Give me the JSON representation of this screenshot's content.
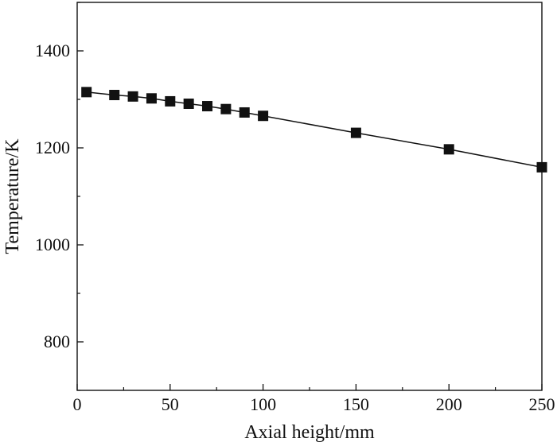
{
  "chart_data": {
    "type": "line",
    "title": "",
    "xlabel": "Axial height/mm",
    "ylabel": "Temperature/K",
    "xlim": [
      0,
      250
    ],
    "ylim": [
      700,
      1500
    ],
    "x_major_ticks": [
      0,
      50,
      100,
      150,
      200,
      250
    ],
    "x_minor_ticks": [
      25,
      75,
      125,
      175,
      225
    ],
    "y_major_ticks": [
      800,
      1000,
      1200,
      1400
    ],
    "y_minor_ticks": [
      700,
      900,
      1100,
      1300,
      1500
    ],
    "x_tick_labels": [
      "0",
      "50",
      "100",
      "150",
      "200",
      "250"
    ],
    "y_tick_labels": [
      "800",
      "1000",
      "1200",
      "1400"
    ],
    "grid": false,
    "legend": "none",
    "marker": "filled-square",
    "series": [
      {
        "x": [
          5,
          20,
          30,
          40,
          50,
          60,
          70,
          80,
          90,
          100,
          150,
          200,
          250
        ],
        "y": [
          1315,
          1309,
          1306,
          1302,
          1296,
          1291,
          1286,
          1280,
          1273,
          1266,
          1231,
          1197,
          1160
        ]
      }
    ],
    "colors": {
      "line": "#111111",
      "marker": "#111111",
      "axis": "#111111"
    }
  }
}
